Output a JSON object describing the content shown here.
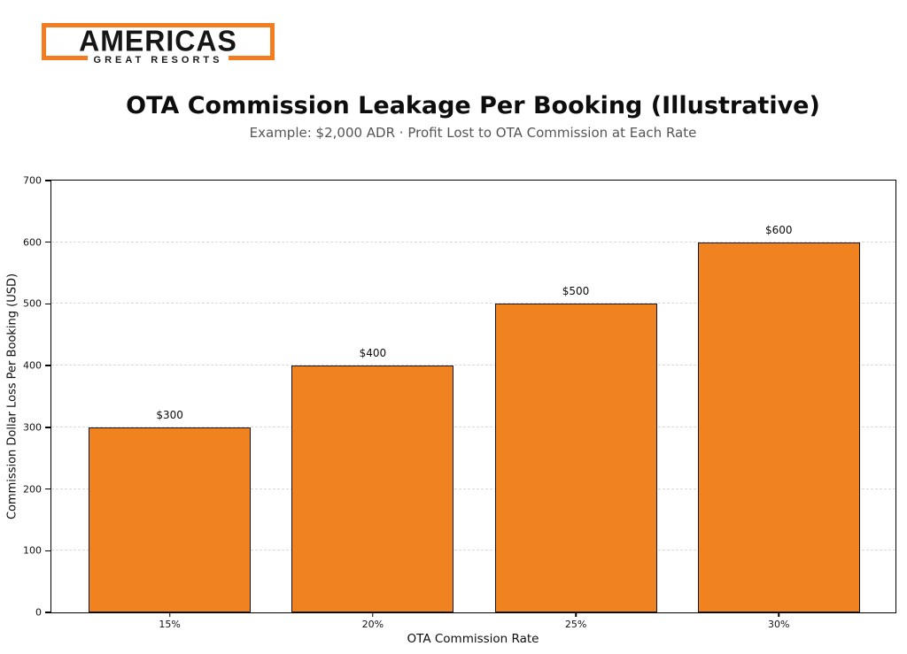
{
  "logo": {
    "primary": "AMERICAS",
    "secondary": "GREAT RESORTS",
    "accent_color": "#f47c20"
  },
  "chart_data": {
    "type": "bar",
    "title": "OTA Commission Leakage Per Booking (Illustrative)",
    "subtitle": "Example: $2,000 ADR · Profit Lost to OTA Commission at Each Rate",
    "categories": [
      "15%",
      "20%",
      "25%",
      "30%"
    ],
    "values": [
      300,
      400,
      500,
      600
    ],
    "bar_labels": [
      "$300",
      "$400",
      "$500",
      "$600"
    ],
    "xlabel": "OTA Commission Rate",
    "ylabel": "Commission Dollar Loss Per Booking (USD)",
    "ylim": [
      0,
      700
    ],
    "yticks": [
      0,
      100,
      200,
      300,
      400,
      500,
      600,
      700
    ],
    "grid": "horizontal-dashed",
    "legend_position": "none",
    "bar_color": "#f08220",
    "bar_edge_color": "#161616",
    "grid_color": "#d9d9d9",
    "subtitle_color": "#555555"
  }
}
